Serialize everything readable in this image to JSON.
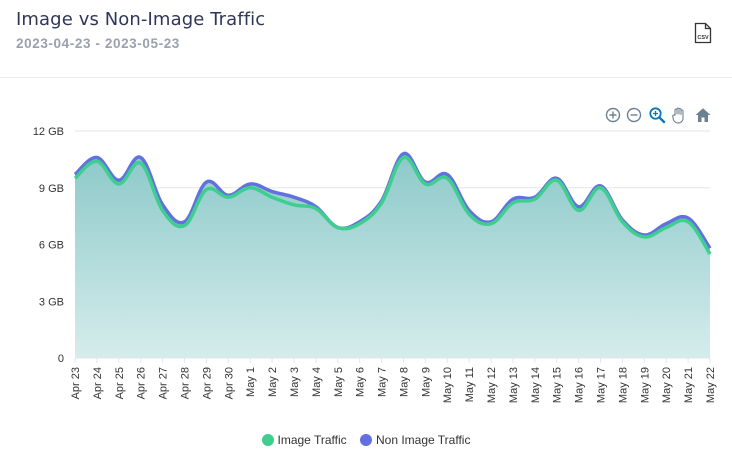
{
  "header": {
    "title": "Image vs Non-Image Traffic",
    "date_range": "2023-04-23 - 2023-05-23",
    "csv_label": "CSV"
  },
  "toolbar": {
    "icons": [
      "zoom-in-icon",
      "zoom-out-icon",
      "zoom-select-icon",
      "pan-hand-icon",
      "home-reset-icon"
    ],
    "active_color": "#0d78b8",
    "inactive_color": "#6e8192"
  },
  "colors": {
    "image_traffic": "#3ecf8e",
    "non_image_traffic": "#6370e0",
    "fill_top": "#8cc9c9",
    "fill_bottom": "#d6ecec"
  },
  "chart_data": {
    "type": "area",
    "title": "Image vs Non-Image Traffic",
    "xlabel": "",
    "ylabel": "",
    "categories": [
      "Apr 23",
      "Apr 24",
      "Apr 25",
      "Apr 26",
      "Apr 27",
      "Apr 28",
      "Apr 29",
      "Apr 30",
      "May 1",
      "May 2",
      "May 3",
      "May 4",
      "May 5",
      "May 6",
      "May 7",
      "May 8",
      "May 9",
      "May 10",
      "May 11",
      "May 12",
      "May 13",
      "May 14",
      "May 15",
      "May 16",
      "May 17",
      "May 18",
      "May 19",
      "May 20",
      "May 21",
      "May 22"
    ],
    "ylim": [
      0,
      12
    ],
    "yticks": [
      0,
      3,
      6,
      9,
      12
    ],
    "ytick_labels": [
      "0",
      "3 GB",
      "6 GB",
      "9 GB",
      "12 GB"
    ],
    "grid": true,
    "legend_position": "bottom-center",
    "series": [
      {
        "name": "Image Traffic",
        "values": [
          9.5,
          10.4,
          9.2,
          10.3,
          7.8,
          7.0,
          8.9,
          8.5,
          9.0,
          8.5,
          8.1,
          7.9,
          6.9,
          7.1,
          8.2,
          10.6,
          9.2,
          9.5,
          7.6,
          7.1,
          8.2,
          8.4,
          9.4,
          7.8,
          9.0,
          7.2,
          6.4,
          6.9,
          7.2,
          5.5
        ]
      },
      {
        "name": "Non Image Traffic",
        "values": [
          9.7,
          10.6,
          9.4,
          10.6,
          8.1,
          7.2,
          9.3,
          8.6,
          9.2,
          8.8,
          8.5,
          8.0,
          6.9,
          7.2,
          8.3,
          10.8,
          9.3,
          9.7,
          7.8,
          7.2,
          8.4,
          8.5,
          9.5,
          8.0,
          9.1,
          7.3,
          6.5,
          7.1,
          7.4,
          5.8
        ]
      }
    ]
  }
}
